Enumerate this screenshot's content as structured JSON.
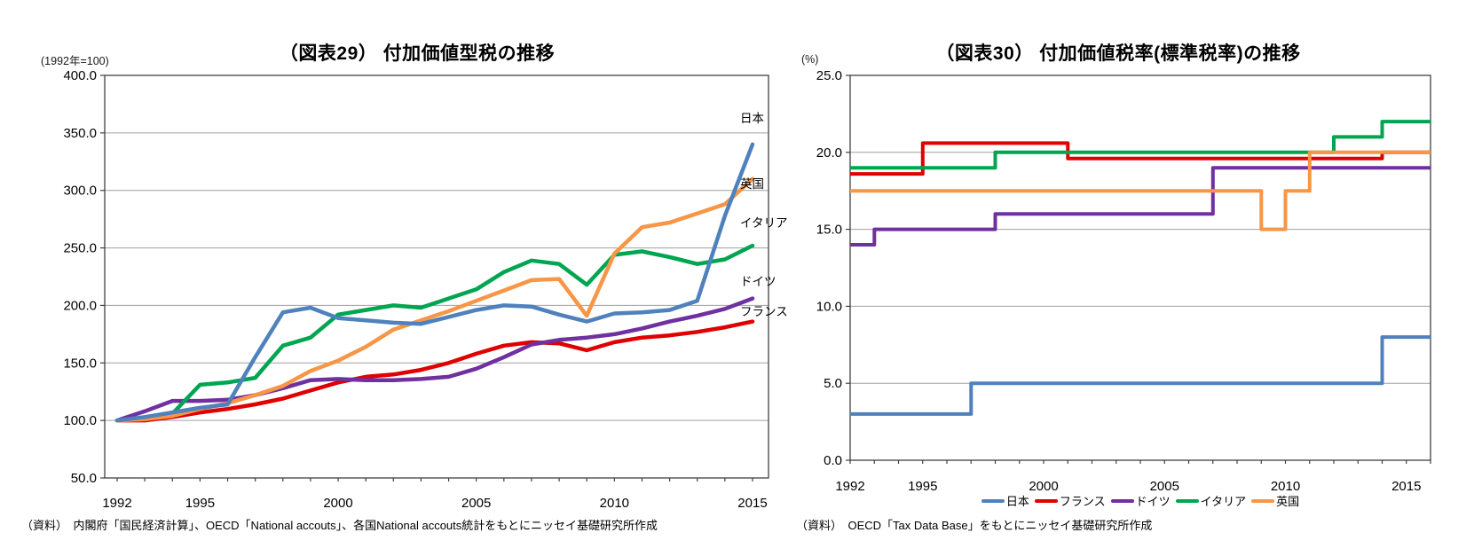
{
  "chart_data": [
    {
      "id": "fig29",
      "type": "line",
      "title": "（図表29） 付加価値型税の推移",
      "unit_label": "(1992年=100)",
      "source": "（資料）　内閣府「国民経済計算」、OECD「National accouts」、各国National accouts統計をもとにニッセイ基礎研究所作成",
      "x_start": 1992,
      "x_end": 2015,
      "ylim": [
        50,
        400
      ],
      "ytick_labels": [
        "400.0",
        "350.0",
        "300.0",
        "250.0",
        "200.0",
        "150.0",
        "100.0",
        "50.0"
      ],
      "yticks": [
        400,
        350,
        300,
        250,
        200,
        150,
        100,
        50
      ],
      "xtick_labels": [
        "1992",
        "1995",
        "2000",
        "2005",
        "2010",
        "2015"
      ],
      "xtick_years": [
        1992,
        1995,
        2000,
        2005,
        2010,
        2015
      ],
      "grid": true,
      "series": [
        {
          "key": "france",
          "name": "フランス",
          "color": "#E00000",
          "values": [
            100,
            100,
            103,
            107,
            110,
            114,
            119,
            126,
            133,
            138,
            140,
            144,
            150,
            158,
            165,
            168,
            167,
            161,
            168,
            172,
            174,
            177,
            181,
            186
          ],
          "end_label_y": 195
        },
        {
          "key": "germany",
          "name": "ドイツ",
          "color": "#7030A0",
          "values": [
            100,
            108,
            117,
            117,
            118,
            122,
            128,
            135,
            136,
            135,
            135,
            136,
            138,
            145,
            155,
            166,
            170,
            172,
            175,
            180,
            186,
            191,
            197,
            206
          ],
          "end_label_y": 221
        },
        {
          "key": "italy",
          "name": "イタリア",
          "color": "#00A550",
          "values": [
            100,
            102,
            106,
            131,
            133,
            137,
            165,
            172,
            192,
            196,
            200,
            198,
            206,
            214,
            229,
            239,
            236,
            218,
            244,
            247,
            242,
            236,
            240,
            252
          ],
          "end_label_y": 272
        },
        {
          "key": "uk",
          "name": "英国",
          "color": "#F79646",
          "values": [
            100,
            101,
            104,
            110,
            115,
            122,
            130,
            143,
            152,
            164,
            179,
            187,
            195,
            204,
            213,
            222,
            223,
            191,
            245,
            268,
            272,
            280,
            288,
            310
          ],
          "end_label_y": 306
        },
        {
          "key": "japan",
          "name": "日本",
          "color": "#4F81BD",
          "values": [
            100,
            103,
            107,
            111,
            114,
            155,
            194,
            198,
            189,
            187,
            185,
            184,
            190,
            196,
            200,
            199,
            192,
            186,
            193,
            194,
            196,
            204,
            278,
            340
          ],
          "end_label_y": 363
        }
      ]
    },
    {
      "id": "fig30",
      "type": "step-line",
      "title": "（図表30） 付加価値税率(標準税率)の推移",
      "unit_label": "(%)",
      "source": "（資料）　OECD「Tax Data Base」をもとにニッセイ基礎研究所作成",
      "x_start": 1992,
      "x_end": 2016,
      "ylim": [
        0,
        25
      ],
      "ytick_labels": [
        "25.0",
        "20.0",
        "15.0",
        "10.0",
        "5.0",
        "0.0"
      ],
      "yticks": [
        25,
        20,
        15,
        10,
        5,
        0
      ],
      "xtick_labels": [
        "1992",
        "1995",
        "2000",
        "2005",
        "2010",
        "2015"
      ],
      "xtick_years": [
        1992,
        1995,
        2000,
        2005,
        2010,
        2015
      ],
      "grid": true,
      "series": [
        {
          "key": "japan",
          "name": "日本",
          "color": "#4F81BD",
          "steps": [
            [
              1992,
              3
            ],
            [
              1997,
              5
            ],
            [
              2014,
              8
            ]
          ]
        },
        {
          "key": "france",
          "name": "フランス",
          "color": "#E00000",
          "steps": [
            [
              1992,
              18.6
            ],
            [
              1995,
              20.6
            ],
            [
              2001,
              19.6
            ],
            [
              2014,
              20
            ]
          ]
        },
        {
          "key": "germany",
          "name": "ドイツ",
          "color": "#7030A0",
          "steps": [
            [
              1992,
              14
            ],
            [
              1993,
              15
            ],
            [
              1998,
              16
            ],
            [
              2007,
              19
            ]
          ]
        },
        {
          "key": "italy",
          "name": "イタリア",
          "color": "#00A550",
          "steps": [
            [
              1992,
              19
            ],
            [
              1998,
              20
            ],
            [
              2012,
              21
            ],
            [
              2014,
              22
            ]
          ]
        },
        {
          "key": "uk",
          "name": "英国",
          "color": "#F79646",
          "steps": [
            [
              1992,
              17.5
            ],
            [
              2009,
              15
            ],
            [
              2010,
              17.5
            ],
            [
              2011,
              20
            ]
          ]
        }
      ],
      "legend": [
        {
          "key": "japan",
          "label": "日本",
          "color": "#4F81BD"
        },
        {
          "key": "france",
          "label": "フランス",
          "color": "#E00000"
        },
        {
          "key": "germany",
          "label": "ドイツ",
          "color": "#7030A0"
        },
        {
          "key": "italy",
          "label": "イタリア",
          "color": "#00A550"
        },
        {
          "key": "uk",
          "label": "英国",
          "color": "#F79646"
        }
      ]
    }
  ],
  "style": {
    "grid_color": "#a0a0a0",
    "box_color": "#404040",
    "tick_text_color": "#000000"
  }
}
